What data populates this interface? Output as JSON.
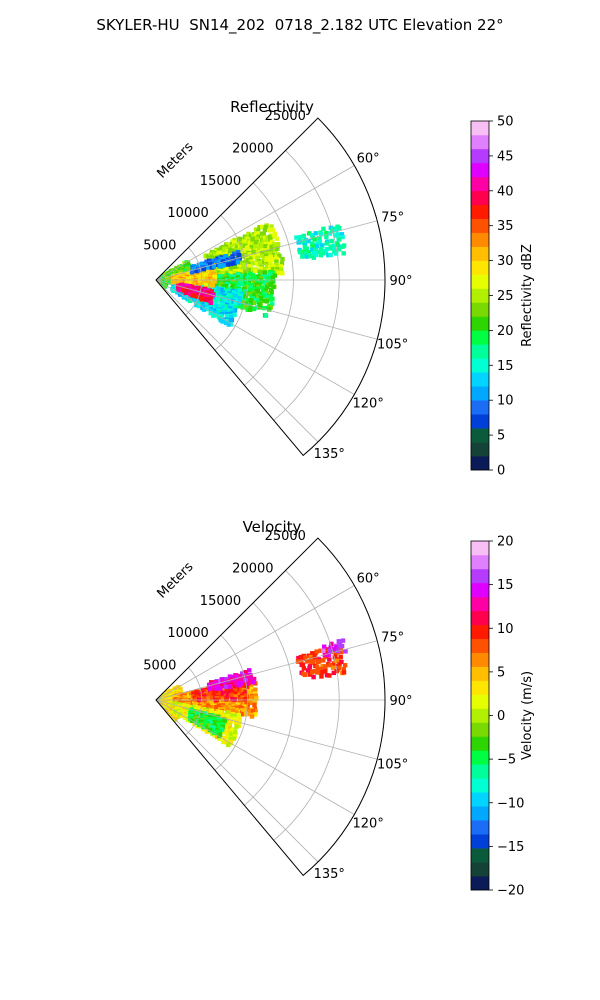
{
  "figure": {
    "title": "SKYLER-HU  SN14_202  0718_2.182 UTC Elevation 22°"
  },
  "chart_data": [
    {
      "type": "heatmap",
      "projection": "polar-sector",
      "title": "Reflectivity",
      "range_axis_label": "Meters",
      "range_ticks": [
        5000,
        10000,
        15000,
        20000,
        25000
      ],
      "range_tick_labels": [
        "5000",
        "10000",
        "15000",
        "20000",
        "25000"
      ],
      "rlim": [
        0,
        25000
      ],
      "azimuth_range_deg": [
        45,
        140
      ],
      "azimuth_ticks_deg": [
        60,
        75,
        90,
        105,
        120,
        135
      ],
      "azimuth_tick_labels": [
        "60°",
        "75°",
        "90°",
        "105°",
        "120°",
        "135°"
      ],
      "grid": true,
      "colorbar": {
        "label": "Reflectivity dBZ",
        "range": [
          0,
          50
        ],
        "ticks": [
          0,
          5,
          10,
          15,
          20,
          25,
          30,
          35,
          40,
          45,
          50
        ],
        "tick_labels": [
          "0",
          "5",
          "10",
          "15",
          "20",
          "25",
          "30",
          "35",
          "40",
          "45",
          "50"
        ],
        "colors": [
          "#0b1b57",
          "#154236",
          "#0a5a3c",
          "#003fd8",
          "#1c6df5",
          "#00a8ff",
          "#00d4ff",
          "#00ffd2",
          "#00ff9a",
          "#00ff44",
          "#2ed600",
          "#7ad900",
          "#b0f000",
          "#e6ff00",
          "#ffe600",
          "#ffbe00",
          "#ff8a00",
          "#ff5200",
          "#ff1a00",
          "#ff004e",
          "#ff00a4",
          "#e000ff",
          "#b53cff",
          "#e080ff",
          "#f8bff5"
        ]
      },
      "echo_regions": [
        {
          "az": [
            57,
            143
          ],
          "r": [
            0,
            1200
          ],
          "value": 20
        },
        {
          "az": [
            59,
            100
          ],
          "r": [
            1200,
            4000
          ],
          "value": 22
        },
        {
          "az": [
            63,
            87
          ],
          "r": [
            6000,
            14000
          ],
          "value": 25
        },
        {
          "az": [
            86,
            108
          ],
          "r": [
            4200,
            13000
          ],
          "value": 20
        },
        {
          "az": [
            97,
            122
          ],
          "r": [
            2000,
            9500
          ],
          "value": 14
        },
        {
          "az": [
            77,
            96
          ],
          "r": [
            1800,
            6500
          ],
          "value": 30
        },
        {
          "az": [
            100,
            113
          ],
          "r": [
            2500,
            6500
          ],
          "value": 40
        },
        {
          "az": [
            70,
            78
          ],
          "r": [
            4000,
            9500
          ],
          "value": 9
        },
        {
          "az": [
            73,
            82
          ],
          "r": [
            16000,
            21000
          ],
          "value": 16
        }
      ]
    },
    {
      "type": "heatmap",
      "projection": "polar-sector",
      "title": "Velocity",
      "range_axis_label": "Meters",
      "range_ticks": [
        5000,
        10000,
        15000,
        20000,
        25000
      ],
      "range_tick_labels": [
        "5000",
        "10000",
        "15000",
        "20000",
        "25000"
      ],
      "rlim": [
        0,
        25000
      ],
      "azimuth_range_deg": [
        45,
        140
      ],
      "azimuth_ticks_deg": [
        60,
        75,
        90,
        105,
        120,
        135
      ],
      "azimuth_tick_labels": [
        "60°",
        "75°",
        "90°",
        "105°",
        "120°",
        "135°"
      ],
      "grid": true,
      "colorbar": {
        "label": "Velocity (m/s)",
        "range": [
          -20,
          20
        ],
        "ticks": [
          -20,
          -15,
          -10,
          -5,
          0,
          5,
          10,
          15,
          20
        ],
        "tick_labels": [
          "−20",
          "−15",
          "−10",
          "−5",
          "0",
          "5",
          "10",
          "15",
          "20"
        ],
        "colors": [
          "#0b1b57",
          "#154236",
          "#0a5a3c",
          "#003fd8",
          "#1c6df5",
          "#00a8ff",
          "#00d4ff",
          "#00ffd2",
          "#00ff9a",
          "#00ff44",
          "#2ed600",
          "#7ad900",
          "#b0f000",
          "#e6ff00",
          "#ffe600",
          "#ffbe00",
          "#ff8a00",
          "#ff5200",
          "#ff1a00",
          "#ff004e",
          "#ff00a4",
          "#e000ff",
          "#b53cff",
          "#e080ff",
          "#f8bff5"
        ]
      },
      "echo_regions": [
        {
          "az": [
            57,
            143
          ],
          "r": [
            0,
            3000
          ],
          "value": 3
        },
        {
          "az": [
            78,
            100
          ],
          "r": [
            2000,
            11000
          ],
          "value": 6
        },
        {
          "az": [
            78,
            90
          ],
          "r": [
            4000,
            10000
          ],
          "value": 9
        },
        {
          "az": [
            100,
            122
          ],
          "r": [
            2000,
            9500
          ],
          "value": 2
        },
        {
          "az": [
            105,
            120
          ],
          "r": [
            4000,
            8000
          ],
          "value": -4
        },
        {
          "az": [
            72,
            80
          ],
          "r": [
            6000,
            11000
          ],
          "value": 14
        },
        {
          "az": [
            73,
            82
          ],
          "r": [
            16000,
            21000
          ],
          "value": 9
        },
        {
          "az": [
            72,
            76
          ],
          "r": [
            19000,
            21500
          ],
          "value": 15
        }
      ]
    }
  ]
}
